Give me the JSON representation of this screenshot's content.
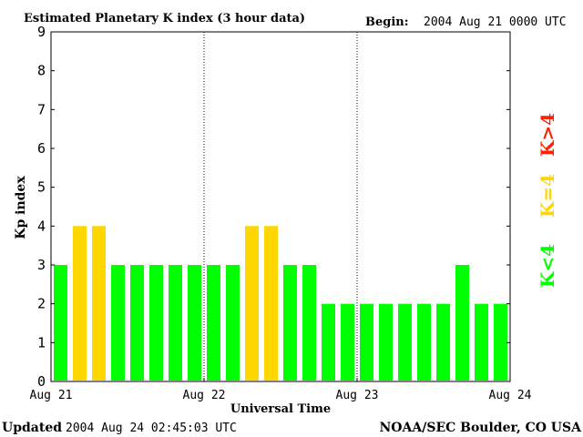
{
  "header": {
    "title": "Estimated Planetary K index (3 hour data)",
    "begin_label": "Begin:",
    "begin_value": "2004 Aug 21 0000 UTC"
  },
  "footer": {
    "updated_label": "Updated",
    "updated_value": "2004 Aug 24 02:45:03 UTC",
    "credit": "NOAA/SEC Boulder, CO USA"
  },
  "legend": {
    "greater": "K>4",
    "equal": "K=4",
    "less": "K<4"
  },
  "colors": {
    "below": "#00ff00",
    "equal": "#ffd700",
    "above": "#ff2200",
    "frame": "#000000",
    "background": "#ffffff"
  },
  "chart_data": {
    "type": "bar",
    "title": "Estimated Planetary K index (3 hour data)",
    "xlabel": "Universal Time",
    "ylabel": "Kp index",
    "ylim": [
      0,
      9
    ],
    "yticks": [
      0,
      1,
      2,
      3,
      4,
      5,
      6,
      7,
      8,
      9
    ],
    "xticks": [
      "Aug 21",
      "Aug 22",
      "Aug 23",
      "Aug 24"
    ],
    "day_dividers": [
      "Aug 22",
      "Aug 23"
    ],
    "interval_hours": 3,
    "values": [
      3,
      4,
      4,
      3,
      3,
      3,
      3,
      3,
      3,
      3,
      4,
      4,
      3,
      3,
      2,
      2,
      2,
      2,
      2,
      2,
      2,
      3,
      2,
      2
    ]
  }
}
